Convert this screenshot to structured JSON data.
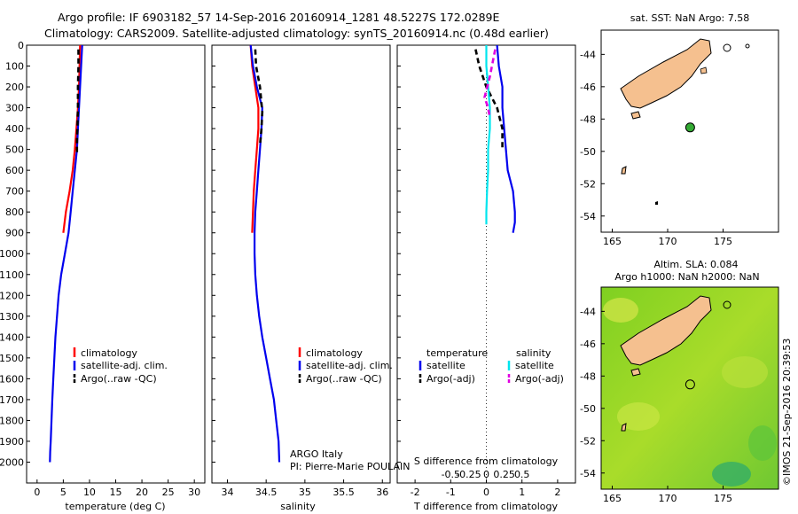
{
  "title": {
    "line1": "Argo profile: IF 6903182_57 14-Sep-2016 20160914_1281 48.5227S 172.0289E",
    "line2": "Climatology: CARS2009. Satellite-adjusted climatology: synTS_20160914.nc (0.48d earlier)"
  },
  "colors": {
    "climatology": "#ff0000",
    "satellite": "#0000ee",
    "argo": "#000000",
    "sal_satellite": "#00e5ee",
    "sal_argo": "#e000e0",
    "land": "#f5c08f",
    "sla_field": "#9ad820",
    "marker": "#33aa33"
  },
  "chart_data": [
    {
      "id": "temperature",
      "type": "line",
      "xlabel": "temperature (deg C)",
      "ylabel": "",
      "xlim": [
        -2,
        32
      ],
      "ylim": [
        2100,
        0
      ],
      "xticks": [
        0,
        5,
        10,
        15,
        20,
        25,
        30
      ],
      "xtick_labels": [
        "0",
        "5",
        "10",
        "15",
        "20",
        "25",
        "30"
      ],
      "yticks": [
        0,
        100,
        200,
        300,
        400,
        500,
        600,
        700,
        800,
        900,
        1000,
        1100,
        1200,
        1300,
        1400,
        1500,
        1600,
        1700,
        1800,
        1900,
        2000
      ],
      "ytick_labels": [
        "0",
        "100",
        "200",
        "300",
        "400",
        "500",
        "600",
        "700",
        "800",
        "900",
        "1000",
        "1100",
        "1200",
        "1300",
        "1400",
        "1500",
        "1600",
        "1700",
        "1800",
        "1900",
        "2000"
      ],
      "legend": [
        "climatology",
        "satellite-adj. clim.",
        "Argo(..raw -QC)"
      ],
      "series": [
        {
          "name": "climatology",
          "color": "#ff0000",
          "dash": false,
          "x": [
            8.2,
            8.1,
            8.0,
            7.8,
            7.5,
            7.2,
            6.8,
            6.2,
            5.5,
            5.0
          ],
          "y": [
            0,
            100,
            200,
            300,
            400,
            500,
            600,
            700,
            800,
            900
          ]
        },
        {
          "name": "satellite-adj. clim.",
          "color": "#0000ee",
          "dash": false,
          "x": [
            8.6,
            8.4,
            8.2,
            8.0,
            7.8,
            7.6,
            7.2,
            6.8,
            6.4,
            6.0,
            5.3,
            4.6,
            4.1,
            3.8,
            3.5,
            3.3,
            3.1,
            2.9,
            2.75,
            2.6,
            2.5,
            2.45
          ],
          "y": [
            0,
            100,
            200,
            300,
            400,
            500,
            600,
            700,
            800,
            900,
            1000,
            1100,
            1200,
            1300,
            1400,
            1500,
            1600,
            1700,
            1800,
            1900,
            1950,
            2000
          ]
        },
        {
          "name": "Argo(..raw -QC)",
          "color": "#000000",
          "dash": true,
          "x": [
            7.9,
            7.9,
            7.8,
            7.8,
            7.7,
            7.6,
            7.6
          ],
          "y": [
            20,
            100,
            200,
            300,
            400,
            450,
            520
          ]
        }
      ]
    },
    {
      "id": "salinity",
      "type": "line",
      "xlabel": "salinity",
      "ylabel": "",
      "xlim": [
        33.8,
        36.1
      ],
      "ylim": [
        2100,
        0
      ],
      "xticks": [
        34,
        34.5,
        35,
        35.5,
        36
      ],
      "xtick_labels": [
        "34",
        "34.5",
        "35",
        "35.5",
        "36"
      ],
      "legend": [
        "climatology",
        "satellite-adj. clim.",
        "Argo(..raw -QC)"
      ],
      "annotation": [
        "ARGO Italy",
        "PI: Pierre-Marie POULAIN"
      ],
      "series": [
        {
          "name": "climatology",
          "color": "#ff0000",
          "dash": false,
          "x": [
            34.3,
            34.32,
            34.36,
            34.4,
            34.4,
            34.38,
            34.36,
            34.34,
            34.33,
            34.32
          ],
          "y": [
            0,
            100,
            200,
            300,
            400,
            500,
            600,
            700,
            800,
            900
          ]
        },
        {
          "name": "satellite-adj. clim.",
          "color": "#0000ee",
          "dash": false,
          "x": [
            34.3,
            34.33,
            34.38,
            34.45,
            34.44,
            34.42,
            34.4,
            34.38,
            34.36,
            34.35,
            34.35,
            34.36,
            34.38,
            34.41,
            34.45,
            34.5,
            34.55,
            34.6,
            34.63,
            34.66,
            34.67
          ],
          "y": [
            0,
            100,
            200,
            300,
            400,
            500,
            600,
            700,
            800,
            900,
            1000,
            1100,
            1200,
            1300,
            1400,
            1500,
            1600,
            1700,
            1800,
            1900,
            2000
          ]
        },
        {
          "name": "Argo(..raw -QC)",
          "color": "#000000",
          "dash": true,
          "x": [
            34.36,
            34.37,
            34.42,
            34.45,
            34.44,
            34.42
          ],
          "y": [
            20,
            100,
            200,
            320,
            400,
            480
          ]
        }
      ]
    },
    {
      "id": "difference",
      "type": "line",
      "xlabel": "T difference from climatology",
      "xlabel2": "S difference from climatology",
      "xlim": [
        -2.5,
        2.5
      ],
      "ylim": [
        2100,
        0
      ],
      "xticks": [
        -2,
        -1,
        0,
        1,
        2
      ],
      "xtick_labels": [
        "-2",
        "-1",
        "0",
        "1",
        "2"
      ],
      "xticks2": [
        -1,
        -0.5,
        0,
        0.5,
        1
      ],
      "xtick2_labels": [
        "-0.5",
        "-0.25",
        "0",
        "0.25",
        "0.5"
      ],
      "legend_titles": [
        "temperature",
        "salinity"
      ],
      "legend": [
        "satellite",
        "Argo(-adj)",
        "satellite",
        "Argo(-adj)"
      ],
      "series": [
        {
          "name": "temperature satellite",
          "color": "#0000ee",
          "dash": false,
          "x": [
            0.3,
            0.35,
            0.45,
            0.45,
            0.5,
            0.55,
            0.6,
            0.75,
            0.8,
            0.8,
            0.75
          ],
          "y": [
            0,
            100,
            200,
            300,
            400,
            500,
            600,
            700,
            800,
            850,
            900
          ]
        },
        {
          "name": "temperature Argo(-adj)",
          "color": "#000000",
          "dash": true,
          "x": [
            -0.3,
            -0.2,
            0,
            0.3,
            0.45,
            0.45
          ],
          "y": [
            20,
            100,
            200,
            300,
            400,
            500
          ]
        },
        {
          "name": "salinity satellite",
          "color": "#00e5ee",
          "dash": false,
          "x": [
            0,
            0,
            0.05,
            0.1,
            0.1,
            0.05,
            0.05,
            0.02,
            0,
            0
          ],
          "y": [
            0,
            100,
            200,
            300,
            400,
            500,
            600,
            700,
            800,
            860
          ]
        },
        {
          "name": "salinity Argo(-adj)",
          "color": "#e000e0",
          "dash": true,
          "x": [
            0.25,
            0.1,
            -0.05,
            0.05,
            0.1
          ],
          "y": [
            20,
            150,
            250,
            300,
            350
          ]
        }
      ]
    },
    {
      "id": "map_sst",
      "type": "scatter",
      "title": "sat. SST: NaN Argo: 7.58",
      "xlim": [
        164,
        180
      ],
      "ylim": [
        -55,
        -42.5
      ],
      "xticks": [
        165,
        170,
        175
      ],
      "xtick_labels": [
        "165",
        "170",
        "175"
      ],
      "yticks": [
        -44,
        -46,
        -48,
        -50,
        -52,
        -54
      ],
      "ytick_labels": [
        "-44",
        "-46",
        "-48",
        "-50",
        "-52",
        "-54"
      ],
      "points": [
        {
          "label": "Argo",
          "x": 172.03,
          "y": -48.52
        }
      ]
    },
    {
      "id": "map_sla",
      "type": "heatmap",
      "title_line1": "Altim. SLA: 0.084",
      "title_line2": "Argo h1000: NaN h2000: NaN",
      "xlim": [
        164,
        180
      ],
      "ylim": [
        -55,
        -42.5
      ],
      "xticks": [
        165,
        170,
        175
      ],
      "xtick_labels": [
        "165",
        "170",
        "175"
      ],
      "yticks": [
        -44,
        -46,
        -48,
        -50,
        -52,
        -54
      ],
      "ytick_labels": [
        "-44",
        "-46",
        "-48",
        "-50",
        "-52",
        "-54"
      ],
      "points": [
        {
          "label": "Argo",
          "x": 172.03,
          "y": -48.52
        }
      ]
    }
  ],
  "credit": "©IMOS 21-Sep-2016 20:39:53"
}
